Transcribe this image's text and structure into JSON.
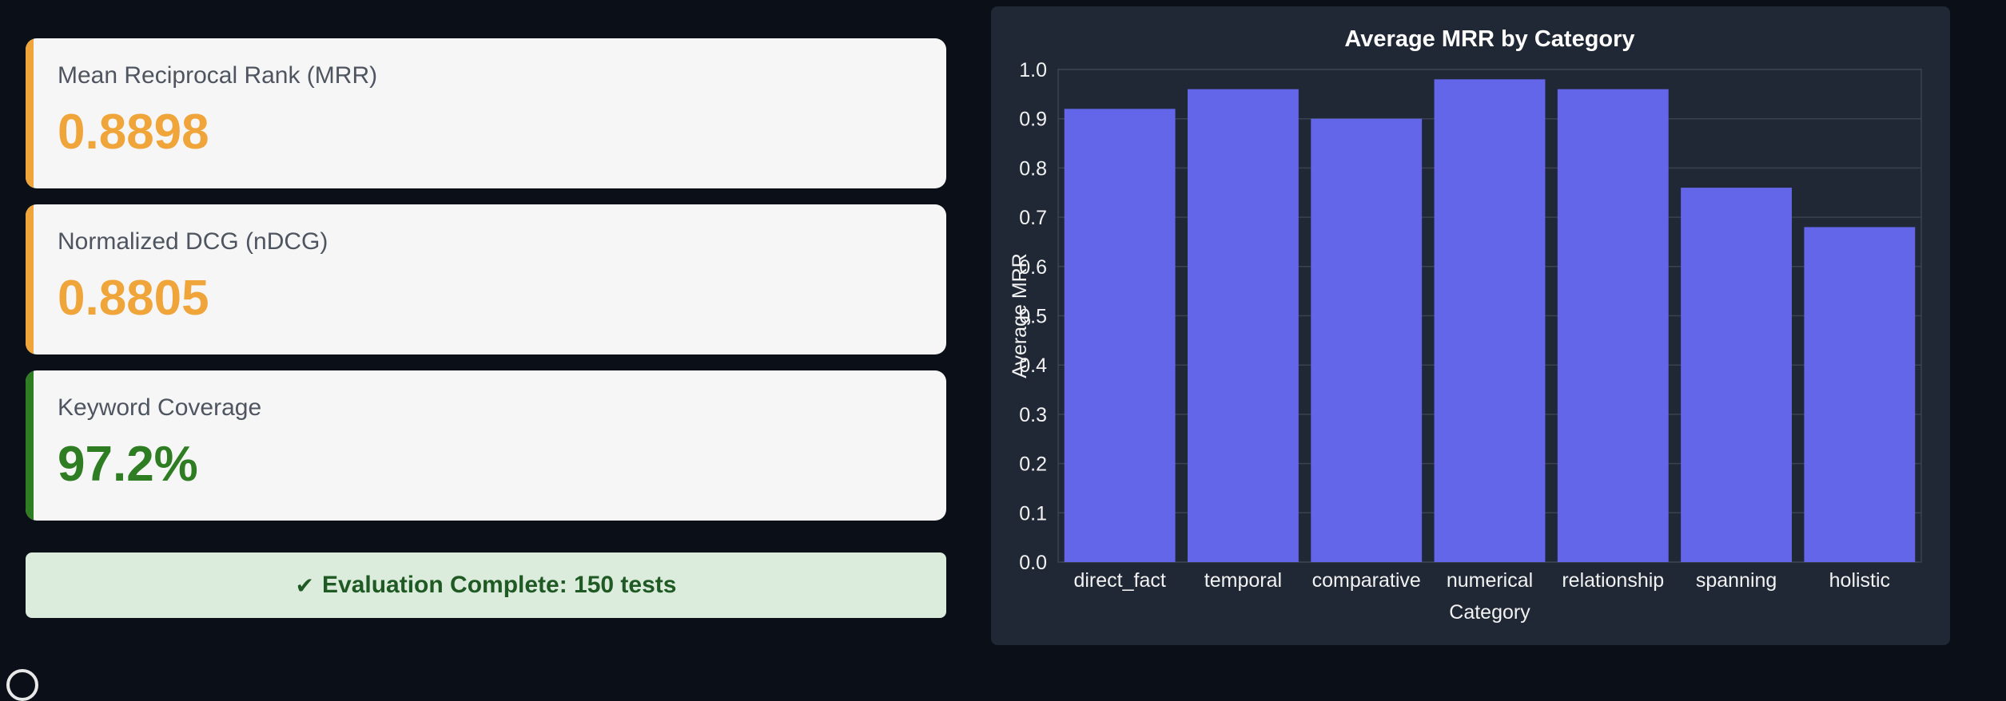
{
  "colors": {
    "mrr_accent": "#f0a53a",
    "ndcg_accent": "#f0a53a",
    "coverage_accent": "#2f7d22",
    "mrr_value": "#f0a53a",
    "ndcg_value": "#f0a53a",
    "coverage_value": "#2f7d22",
    "bar_fill": "#6366e9"
  },
  "metrics": [
    {
      "label": "Mean Reciprocal Rank (MRR)",
      "value": "0.8898"
    },
    {
      "label": "Normalized DCG (nDCG)",
      "value": "0.8805"
    },
    {
      "label": "Keyword Coverage",
      "value": "97.2%"
    }
  ],
  "status": {
    "icon": "check-icon",
    "text": "Evaluation Complete: 150 tests"
  },
  "chart_data": {
    "type": "bar",
    "title": "Average MRR by Category",
    "xlabel": "Category",
    "ylabel": "Average MRR",
    "categories": [
      "direct_fact",
      "temporal",
      "comparative",
      "numerical",
      "relationship",
      "spanning",
      "holistic"
    ],
    "values": [
      0.92,
      0.96,
      0.9,
      0.98,
      0.96,
      0.76,
      0.68
    ],
    "ylim": [
      0,
      1.0
    ],
    "yticks": [
      "0.0",
      "0.1",
      "0.2",
      "0.3",
      "0.4",
      "0.5",
      "0.6",
      "0.7",
      "0.8",
      "0.9",
      "1.0"
    ],
    "grid": true,
    "legend": "none"
  }
}
